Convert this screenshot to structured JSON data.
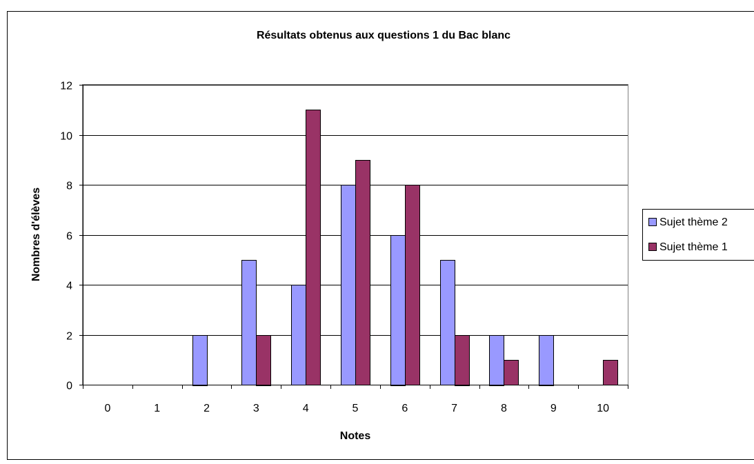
{
  "chart_data": {
    "type": "bar",
    "title": "Résultats obtenus aux questions 1 du Bac blanc",
    "xlabel": "Notes",
    "ylabel": "Nombres d'élèves",
    "categories": [
      "0",
      "1",
      "2",
      "3",
      "4",
      "5",
      "6",
      "7",
      "8",
      "9",
      "10"
    ],
    "series": [
      {
        "name": "Sujet thème 2",
        "color": "#9999ff",
        "values": [
          0,
          0,
          2,
          5,
          4,
          8,
          6,
          5,
          2,
          2,
          0
        ]
      },
      {
        "name": "Sujet thème 1",
        "color": "#993366",
        "values": [
          0,
          0,
          0,
          2,
          11,
          9,
          8,
          2,
          1,
          0,
          1
        ]
      }
    ],
    "ylim": [
      0,
      12
    ],
    "yticks": [
      0,
      2,
      4,
      6,
      8,
      10,
      12
    ],
    "grid": true,
    "legend_position": "right"
  }
}
